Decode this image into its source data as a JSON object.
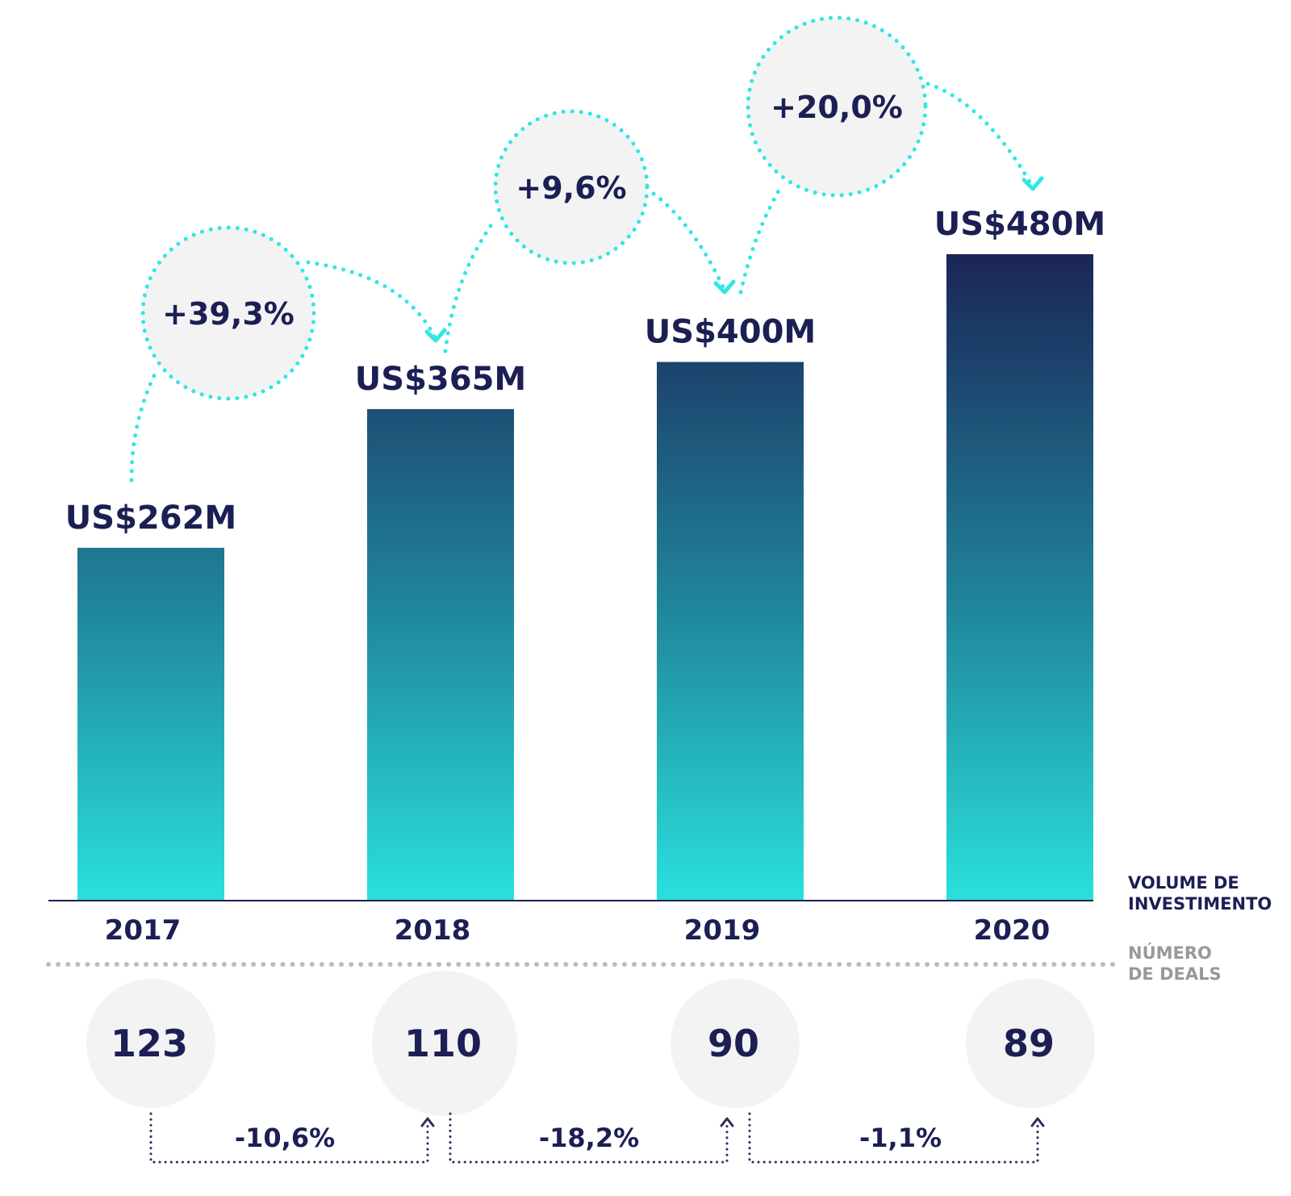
{
  "chart_data": {
    "type": "bar",
    "categories": [
      "2017",
      "2018",
      "2019",
      "2020"
    ],
    "series": [
      {
        "values": [
          262,
          365,
          400,
          480
        ]
      }
    ],
    "value_labels": [
      "US$262M",
      "US$365M",
      "US$400M",
      "US$480M"
    ],
    "growth_labels": [
      "+39,3%",
      "+9,6%",
      "+20,0%"
    ],
    "deals": {
      "title_line1": "NÚMERO",
      "title_line2": "DE DEALS",
      "values": [
        123,
        110,
        90,
        89
      ],
      "labels": [
        "123",
        "110",
        "90",
        "89"
      ],
      "change_labels": [
        "-10,6%",
        "-18,2%",
        "-1,1%"
      ]
    },
    "axis_label_line1": "VOLUME DE",
    "axis_label_line2": "INVESTIMENTO",
    "ylim": [
      0,
      480
    ],
    "colors": {
      "bar_top": "#1b2558",
      "bar_bottom": "#2ae0dc",
      "text": "#1b1f54",
      "accent": "#33e6e6",
      "bubble": "#f3f3f3",
      "axis": "#1b1f54",
      "muted": "#999999"
    }
  }
}
